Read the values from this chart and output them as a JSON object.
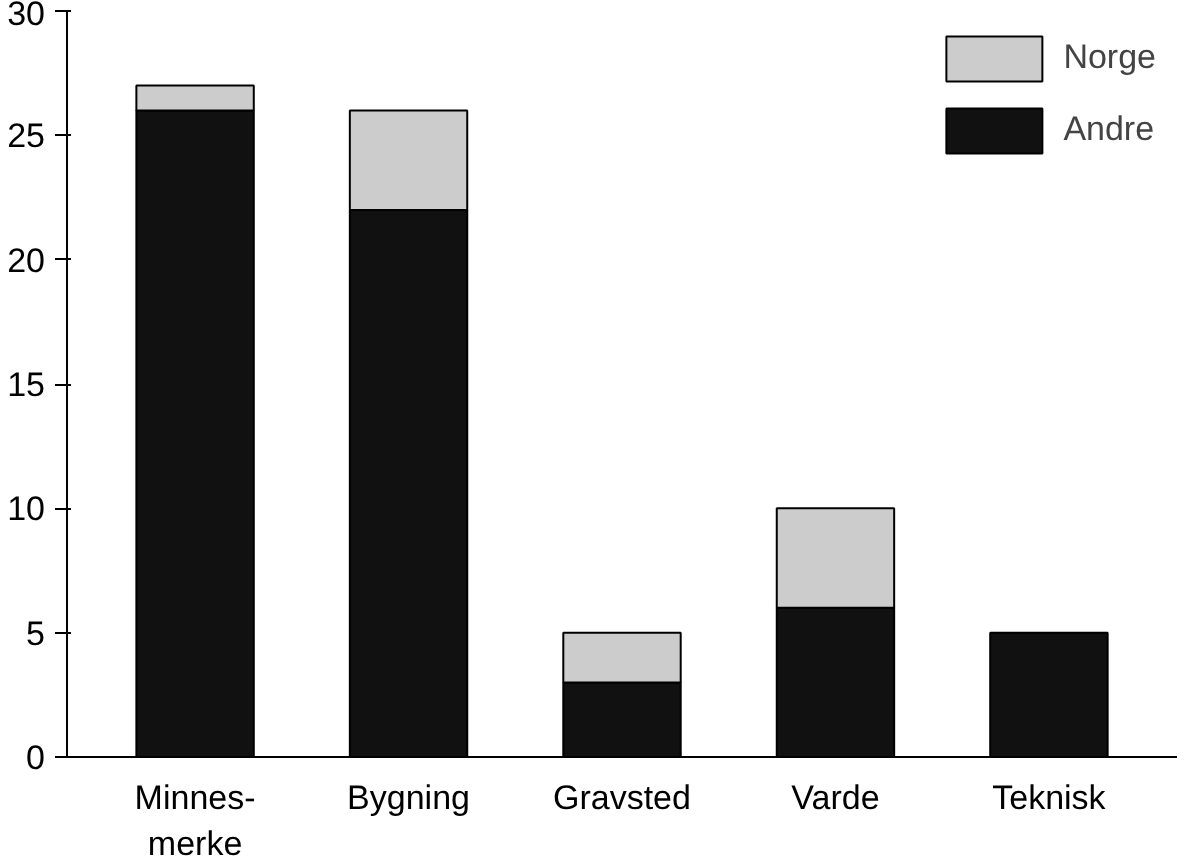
{
  "chart_data": {
    "type": "bar",
    "stacked": true,
    "categories": [
      "Minnes-\nmerke",
      "Bygning",
      "Gravsted",
      "Varde",
      "Teknisk"
    ],
    "series": [
      {
        "name": "Andre",
        "color": "#111111",
        "values": [
          26,
          22,
          3,
          6,
          5
        ]
      },
      {
        "name": "Norge",
        "color": "#cccccc",
        "values": [
          1,
          4,
          2,
          4,
          0
        ]
      }
    ],
    "ylim": [
      0,
      30
    ],
    "yticks": [
      0,
      5,
      10,
      15,
      20,
      25,
      30
    ],
    "grid": false,
    "legend": "top right"
  }
}
